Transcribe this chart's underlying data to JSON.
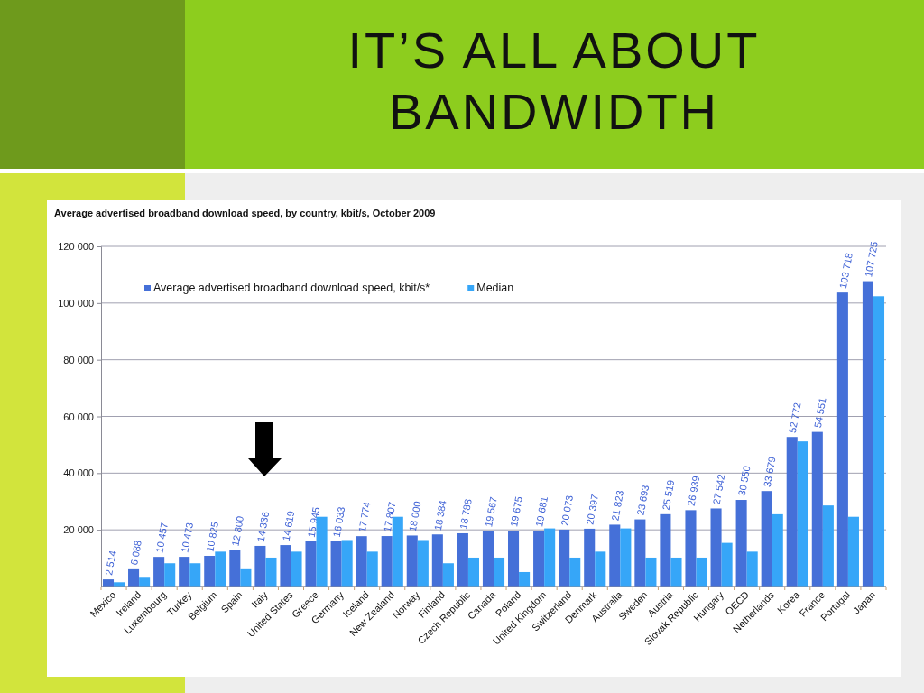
{
  "chart_data": {
    "type": "bar",
    "title": "IT’S ALL ABOUT BANDWIDTH",
    "subtitle": "Average advertised broadband download speed, by country, kbit/s, October 2009",
    "categories": [
      "Mexico",
      "Ireland",
      "Luxembourg",
      "Turkey",
      "Belgium",
      "Spain",
      "Italy",
      "United States",
      "Greece",
      "Germany",
      "Iceland",
      "New Zealand",
      "Norway",
      "Finland",
      "Czech Republic",
      "Canada",
      "Poland",
      "United Kingdom",
      "Switzerland",
      "Denmark",
      "Australia",
      "Sweden",
      "Austria",
      "Slovak Republic",
      "Hungary",
      "OECD",
      "Netherlands",
      "Korea",
      "France",
      "Portugal",
      "Japan"
    ],
    "series": [
      {
        "name": "Average advertised broadband download speed, kbit/s*",
        "color": "#4570d8",
        "values": [
          2514,
          6088,
          10457,
          10473,
          10825,
          12800,
          14336,
          14619,
          15945,
          16033,
          17774,
          17807,
          18000,
          18384,
          18788,
          19567,
          19675,
          19681,
          20073,
          20397,
          21823,
          23693,
          25519,
          26939,
          27542,
          30550,
          33679,
          52772,
          54551,
          103718,
          107725
        ],
        "value_labels": [
          "2 514",
          "6 088",
          "10 457",
          "10 473",
          "10 825",
          "12 800",
          "14 336",
          "14 619",
          "15 945",
          "16 033",
          "17 774",
          "17 807",
          "18 000",
          "18 384",
          "18 788",
          "19 567",
          "19 675",
          "19 681",
          "20 073",
          "20 397",
          "21 823",
          "23 693",
          "25 519",
          "26 939",
          "27 542",
          "30 550",
          "33 679",
          "52 772",
          "54 551",
          "103 718",
          "107 725"
        ]
      },
      {
        "name": "Median",
        "color": "#36a6f8",
        "values": [
          1500,
          3100,
          8200,
          8200,
          12300,
          6100,
          10200,
          12300,
          24600,
          16400,
          12300,
          24600,
          16400,
          8200,
          10200,
          10200,
          5100,
          20500,
          10200,
          12300,
          20500,
          10200,
          10200,
          10200,
          15400,
          12300,
          25500,
          51200,
          28600,
          24600,
          102400
        ]
      }
    ],
    "ylim": [
      0,
      120000
    ],
    "yticks": [
      {
        "value": 0,
        "label": null
      },
      {
        "value": 20000,
        "label": "20 000"
      },
      {
        "value": 40000,
        "label": "40 000"
      },
      {
        "value": 60000,
        "label": "60 000"
      },
      {
        "value": 80000,
        "label": "80 000"
      },
      {
        "value": 100000,
        "label": "100 000"
      },
      {
        "value": 120000,
        "label": "120 000"
      }
    ],
    "grid": "y",
    "legend": "top"
  }
}
